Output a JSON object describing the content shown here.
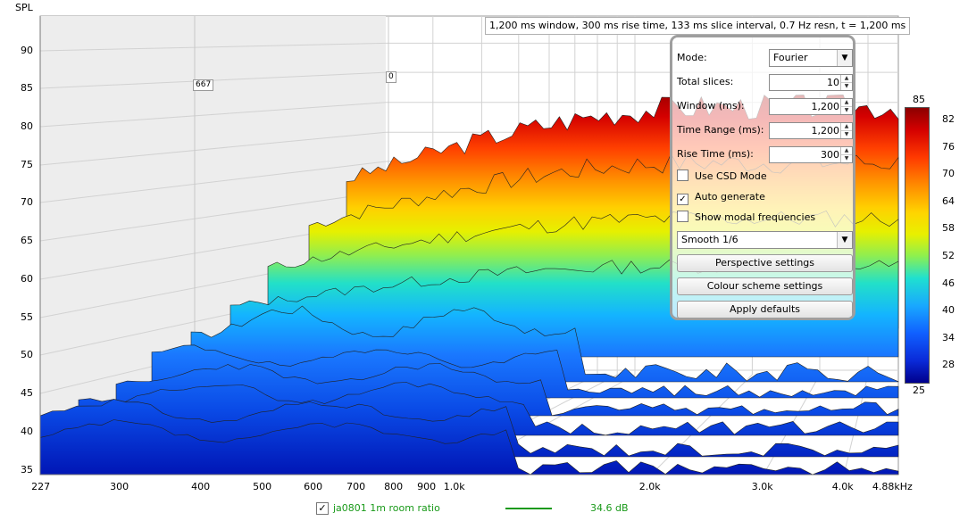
{
  "plot": {
    "y_axis_title": "SPL",
    "info_text": "1,200 ms window, 300 ms rise time, 133 ms slice interval, 0.7 Hz resn, t = 1,200 ms",
    "y_ticks": [
      "90",
      "85",
      "80",
      "75",
      "70",
      "65",
      "60",
      "55",
      "50",
      "45",
      "40",
      "35"
    ],
    "x_ticks": [
      "227",
      "300",
      "400",
      "500",
      "600",
      "700",
      "800",
      "900",
      "1.0k",
      "2.0k",
      "3.0k",
      "4.0k",
      "4.88kHz"
    ],
    "markers": [
      "667",
      "0"
    ]
  },
  "panel": {
    "mode_label": "Mode:",
    "mode_value": "Fourier",
    "total_slices_label": "Total slices:",
    "total_slices_value": "10",
    "window_label": "Window (ms):",
    "window_value": "1,200",
    "time_range_label": "Time Range (ms):",
    "time_range_value": "1,200",
    "rise_time_label": "Rise Time (ms):",
    "rise_time_value": "300",
    "use_csd_label": "Use CSD Mode",
    "use_csd_checked": false,
    "auto_generate_label": "Auto generate",
    "auto_generate_checked": true,
    "show_modal_label": "Show modal frequencies",
    "show_modal_checked": false,
    "smoothing_value": "Smooth 1/6",
    "perspective_button": "Perspective settings",
    "colour_scheme_button": "Colour scheme settings",
    "apply_defaults_button": "Apply defaults"
  },
  "colour_scale": {
    "top_label": "85",
    "bottom_label": "25",
    "ticks": [
      "82",
      "76",
      "70",
      "64",
      "58",
      "52",
      "46",
      "40",
      "34",
      "28"
    ]
  },
  "legend": {
    "check_glyph": "✓",
    "measurement_name": "ja0801 1m room ratio",
    "value": "34.6 dB",
    "color": "#1a9a1a"
  }
}
